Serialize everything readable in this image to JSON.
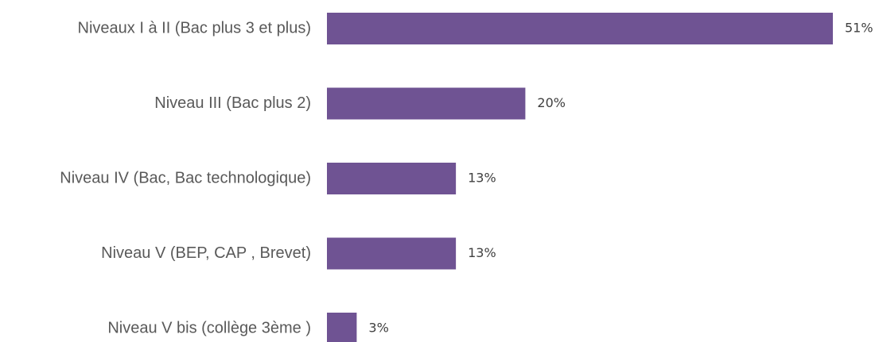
{
  "chart_data": {
    "type": "bar",
    "orientation": "horizontal",
    "categories": [
      "Niveaux I à II (Bac plus 3 et plus)",
      "Niveau III (Bac plus 2)",
      "Niveau IV (Bac, Bac technologique)",
      "Niveau V (BEP, CAP , Brevet)",
      "Niveau V bis (collège 3ème )"
    ],
    "values": [
      51,
      20,
      13,
      13,
      3
    ],
    "value_labels": [
      "51%",
      "20%",
      "13%",
      "13%",
      "3%"
    ],
    "unit": "%",
    "xlim": [
      0,
      51
    ],
    "grid": false,
    "legend": "none",
    "bar_color": "#6f5393"
  }
}
